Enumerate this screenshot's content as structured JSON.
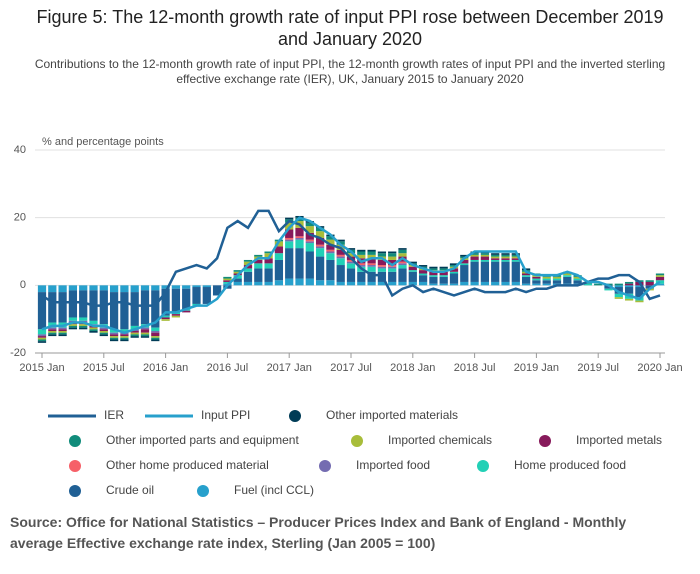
{
  "chart_data": {
    "type": "bar",
    "title": "Figure 5: The 12-month growth rate of input PPI rose between December 2019 and January 2020",
    "subtitle": "Contributions to the 12-month growth rate of input PPI, the 12-month growth rates of input PPI and the inverted sterling effective exchange rate (IER), UK, January 2015 to January 2020",
    "y_label": "% and percentage points",
    "source": "Source: Office for National Statistics – Producer Prices Index and Bank of England - Monthly average Effective exchange rate index, Sterling (Jan 2005 = 100)",
    "categories": [
      "2015 Jan",
      null,
      null,
      null,
      null,
      null,
      "2015 Jul",
      null,
      null,
      null,
      null,
      null,
      "2016 Jan",
      null,
      null,
      null,
      null,
      null,
      "2016 Jul",
      null,
      null,
      null,
      null,
      null,
      "2017 Jan",
      null,
      null,
      null,
      null,
      null,
      "2017 Jul",
      null,
      null,
      null,
      null,
      null,
      "2018 Jan",
      null,
      null,
      null,
      null,
      null,
      "2018 Jul",
      null,
      null,
      null,
      null,
      null,
      "2019 Jan",
      null,
      null,
      null,
      null,
      null,
      "2019 Jul",
      null,
      null,
      null,
      null,
      null,
      "2020 Jan"
    ],
    "ylim": [
      -20,
      40
    ],
    "yticks": [
      -20,
      0,
      20,
      40
    ],
    "grid": true,
    "series": [
      {
        "name": "IER",
        "type": "line",
        "color": "#206095",
        "values": [
          -3,
          -5,
          -5,
          -5,
          -5,
          -6,
          -6,
          -5,
          -5,
          -6,
          -6,
          -6,
          -2,
          4,
          5,
          6,
          5,
          8,
          17,
          19,
          17,
          22,
          22,
          16,
          19,
          18,
          15,
          14,
          12,
          11,
          8,
          5,
          3,
          3,
          -3,
          -1,
          0,
          -2,
          -1,
          -2,
          -3,
          -2,
          -1,
          -2,
          -2,
          -2,
          -1,
          -2,
          -1,
          -1,
          0,
          0,
          0,
          1,
          2,
          2,
          3,
          3,
          1,
          -4,
          -3
        ]
      },
      {
        "name": "Input PPI",
        "type": "line",
        "color": "#27a0cc",
        "values": [
          -13,
          -12,
          -12,
          -11,
          -11,
          -12,
          -12,
          -13,
          -14,
          -13,
          -12,
          -11,
          -8,
          -8,
          -7,
          -6,
          -6,
          -4,
          0,
          3,
          6,
          8,
          8,
          13,
          17,
          20,
          19,
          17,
          15,
          12,
          10,
          7,
          8,
          8,
          6,
          8,
          6,
          5,
          4,
          4,
          5,
          8,
          10,
          10,
          10,
          10,
          10,
          4,
          3,
          3,
          3,
          4,
          3,
          1,
          1,
          0,
          -2,
          -3,
          -4,
          -1,
          1
        ]
      },
      {
        "name": "Other imported materials",
        "type": "bar",
        "color": "#003c57",
        "values": [
          -0.5,
          -0.5,
          -0.5,
          -0.5,
          -0.5,
          -0.5,
          -0.5,
          -0.5,
          -0.5,
          -0.5,
          -0.5,
          -0.5,
          0,
          0,
          0,
          0,
          0,
          0,
          0,
          0,
          0,
          0,
          0,
          0,
          0.5,
          0.5,
          0.5,
          0.5,
          0.5,
          0.5,
          0.5,
          0.5,
          0.5,
          0.5,
          0.5,
          0.5,
          0.5,
          0.5,
          0.5,
          0.5,
          0.5,
          0.5,
          0.5,
          0.5,
          0.5,
          0.5,
          0.5,
          0.5,
          0,
          0,
          0,
          0,
          0,
          0,
          0,
          0,
          0,
          0,
          0,
          0,
          0
        ]
      },
      {
        "name": "Other imported parts and equipment",
        "type": "bar",
        "color": "#118c7b",
        "values": [
          -0.5,
          -0.5,
          -0.5,
          -0.5,
          -0.5,
          -0.5,
          -0.5,
          -0.5,
          -0.5,
          -0.5,
          -0.5,
          -0.5,
          0,
          0,
          0,
          0,
          0,
          0,
          0.5,
          0.5,
          0.5,
          0.5,
          0.5,
          0.5,
          1,
          1,
          1,
          1,
          1,
          1,
          1,
          1,
          1,
          1,
          1,
          1,
          0.5,
          0.5,
          0.5,
          0.5,
          0.5,
          0.5,
          0.5,
          0.5,
          0.5,
          0.5,
          0.5,
          0.5,
          0.5,
          0.5,
          0.5,
          0.5,
          0.5,
          0.5,
          0.5,
          0.5,
          0.5,
          0.5,
          0.5,
          0.5,
          0.5
        ]
      },
      {
        "name": "Imported chemicals",
        "type": "bar",
        "color": "#a8bd3a",
        "values": [
          -0.5,
          -0.5,
          -0.5,
          -0.5,
          -0.5,
          -0.5,
          -0.5,
          -0.5,
          -0.5,
          -0.5,
          -0.5,
          -0.5,
          -0.5,
          -0.5,
          0,
          0,
          0,
          0,
          0.5,
          0.5,
          1,
          1,
          1.5,
          1.5,
          2,
          2,
          2,
          2,
          1.5,
          1.5,
          1,
          1,
          1,
          1,
          1,
          1,
          0.5,
          0.5,
          0.5,
          0.5,
          0.5,
          0.5,
          0.5,
          0.5,
          0.5,
          0.5,
          0.5,
          0.5,
          0.5,
          0.5,
          0.5,
          0.5,
          0.5,
          0,
          0,
          0,
          -0.5,
          -0.5,
          -0.5,
          -0.5,
          0.5
        ]
      },
      {
        "name": "Imported metals",
        "type": "bar",
        "color": "#871a5b",
        "values": [
          -0.5,
          -0.5,
          -0.5,
          -0.5,
          -0.5,
          -0.5,
          -0.5,
          -0.5,
          -0.5,
          -0.5,
          -1,
          -1,
          -0.5,
          -0.5,
          -0.5,
          0,
          0,
          0,
          0.5,
          0.5,
          1,
          1,
          1.5,
          2,
          2.5,
          2.5,
          2,
          2,
          1.5,
          1.5,
          1,
          1.5,
          1.5,
          1.5,
          1.5,
          1.5,
          1,
          1,
          1,
          1,
          1,
          1,
          1,
          1,
          0.5,
          0.5,
          0.5,
          0.5,
          0.5,
          0,
          0,
          0,
          0,
          0,
          0,
          0,
          0,
          0.5,
          1,
          1,
          1
        ]
      },
      {
        "name": "Other home produced material",
        "type": "bar",
        "color": "#f66068",
        "values": [
          0,
          0,
          0,
          0,
          0,
          0,
          0,
          0,
          0,
          0,
          0,
          0,
          0,
          0,
          0,
          0,
          0,
          0,
          0,
          0,
          0,
          0,
          0,
          0,
          0.5,
          0.5,
          0.5,
          0.5,
          0.5,
          0.5,
          0.5,
          0.5,
          0.5,
          0.5,
          0.5,
          0.5,
          0,
          0,
          0,
          0,
          0,
          0,
          0,
          0,
          0,
          0,
          0,
          0,
          0,
          0,
          0,
          0,
          0,
          0,
          0,
          0,
          0,
          0,
          0,
          0,
          0
        ]
      },
      {
        "name": "Imported food",
        "type": "bar",
        "color": "#746cb1",
        "values": [
          -0.5,
          -0.5,
          -0.5,
          -0.5,
          -0.5,
          -0.5,
          -0.5,
          -0.5,
          -0.5,
          -0.5,
          -0.5,
          -0.5,
          0,
          0,
          0,
          0,
          0,
          0,
          0,
          0,
          0,
          0,
          0,
          0,
          0.5,
          0.5,
          0.5,
          0.5,
          0.5,
          0.5,
          0.5,
          0.5,
          0.5,
          0.5,
          0.5,
          0.5,
          0,
          0,
          0,
          0,
          0,
          0,
          0,
          0,
          0,
          0,
          0,
          0,
          0,
          0,
          0,
          0,
          0,
          0,
          0,
          0,
          0,
          0,
          0,
          0,
          0
        ]
      },
      {
        "name": "Home produced food",
        "type": "bar",
        "color": "#22d0b6",
        "values": [
          -1.5,
          -1.5,
          -1.5,
          -1,
          -1,
          -1,
          -1,
          -1,
          -1,
          -1,
          -1,
          -1,
          -0.5,
          -0.5,
          -0.5,
          -0.5,
          0,
          0,
          0.5,
          1,
          1,
          1.5,
          1.5,
          2,
          2,
          2.5,
          2.5,
          2.5,
          2,
          2,
          1.5,
          1.5,
          1.5,
          1,
          1,
          1,
          0.5,
          0.5,
          0.5,
          0.5,
          0.5,
          0.5,
          0.5,
          0.5,
          0.5,
          0.5,
          0.5,
          0.5,
          0.5,
          0.5,
          0.5,
          0.5,
          0.5,
          0.5,
          0,
          -0.5,
          -1,
          -1.5,
          -1,
          0,
          1
        ]
      },
      {
        "name": "Crude oil",
        "type": "bar",
        "color": "#206095",
        "values": [
          -11,
          -9,
          -9,
          -8,
          -8,
          -9,
          -10,
          -11,
          -11,
          -10,
          -10,
          -11,
          -8,
          -7,
          -6,
          -5,
          -5,
          -3,
          -1,
          1,
          3,
          4,
          4,
          6,
          9,
          9,
          8,
          7,
          6,
          5,
          4,
          3,
          3,
          3,
          3,
          4,
          3,
          2,
          2,
          2,
          3,
          5,
          6,
          6,
          6,
          6,
          6,
          2,
          1,
          1,
          1,
          2,
          1,
          0,
          0,
          -1,
          -2,
          -2,
          -3,
          -1,
          0
        ]
      },
      {
        "name": "Fuel (incl CCL)",
        "type": "bar",
        "color": "#27a0cc",
        "values": [
          -2,
          -2,
          -2,
          -1.5,
          -1.5,
          -1.5,
          -1.5,
          -2,
          -2,
          -2,
          -1.5,
          -1.5,
          -1,
          -1,
          -1,
          -0.5,
          -0.5,
          0,
          0.5,
          1,
          1,
          1,
          1,
          1.5,
          2,
          2,
          2,
          1.5,
          1.5,
          1,
          1,
          1,
          1,
          1,
          1,
          1,
          1,
          1,
          0.5,
          0.5,
          0.5,
          1,
          1,
          1,
          1,
          1,
          1,
          0.5,
          0.5,
          0.5,
          0.5,
          0.5,
          0.5,
          0,
          0,
          0,
          -0.5,
          -0.5,
          -0.5,
          0,
          0.5
        ]
      }
    ]
  }
}
